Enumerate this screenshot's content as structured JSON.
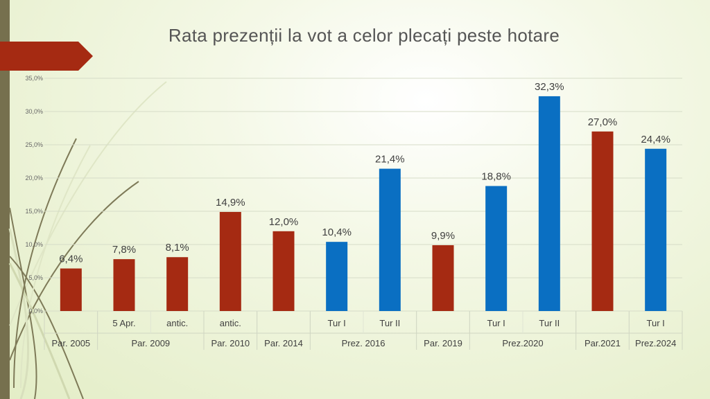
{
  "slide": {
    "title": "Rata prezenții la vot a celor plecați peste hotare"
  },
  "colors": {
    "parliamentary": "#a52a12",
    "presidential": "#0a6fc2",
    "accent": "#a52a12",
    "band": "#76704e"
  },
  "chart_data": {
    "type": "bar",
    "title": "Rata prezenții la vot a celor plecați peste hotare",
    "ylim": [
      0,
      35
    ],
    "yticks": [
      "0,0%",
      "5,0%",
      "10,0%",
      "15,0%",
      "20,0%",
      "25,0%",
      "30,0%",
      "35,0%"
    ],
    "grid": true,
    "bars": [
      {
        "value": 6.4,
        "label": "6,4%",
        "sub": "",
        "kind": "parliamentary"
      },
      {
        "value": 7.8,
        "label": "7,8%",
        "sub": "5 Apr.",
        "kind": "parliamentary"
      },
      {
        "value": 8.1,
        "label": "8,1%",
        "sub": "antic.",
        "kind": "parliamentary"
      },
      {
        "value": 14.9,
        "label": "14,9%",
        "sub": "antic.",
        "kind": "parliamentary"
      },
      {
        "value": 12.0,
        "label": "12,0%",
        "sub": "",
        "kind": "parliamentary"
      },
      {
        "value": 10.4,
        "label": "10,4%",
        "sub": "Tur I",
        "kind": "presidential"
      },
      {
        "value": 21.4,
        "label": "21,4%",
        "sub": "Tur II",
        "kind": "presidential"
      },
      {
        "value": 9.9,
        "label": "9,9%",
        "sub": "",
        "kind": "parliamentary"
      },
      {
        "value": 18.8,
        "label": "18,8%",
        "sub": "Tur I",
        "kind": "presidential"
      },
      {
        "value": 32.3,
        "label": "32,3%",
        "sub": "Tur II",
        "kind": "presidential"
      },
      {
        "value": 27.0,
        "label": "27,0%",
        "sub": "",
        "kind": "parliamentary"
      },
      {
        "value": 24.4,
        "label": "24,4%",
        "sub": "Tur I",
        "kind": "presidential"
      }
    ],
    "groups": [
      {
        "label": "Par. 2005",
        "span": 1
      },
      {
        "label": "Par. 2009",
        "span": 2
      },
      {
        "label": "Par. 2010",
        "span": 1
      },
      {
        "label": "Par. 2014",
        "span": 1
      },
      {
        "label": "Prez. 2016",
        "span": 2
      },
      {
        "label": "Par. 2019",
        "span": 1
      },
      {
        "label": "Prez.2020",
        "span": 2
      },
      {
        "label": "Par.2021",
        "span": 1
      },
      {
        "label": "Prez.2024",
        "span": 1
      }
    ]
  }
}
